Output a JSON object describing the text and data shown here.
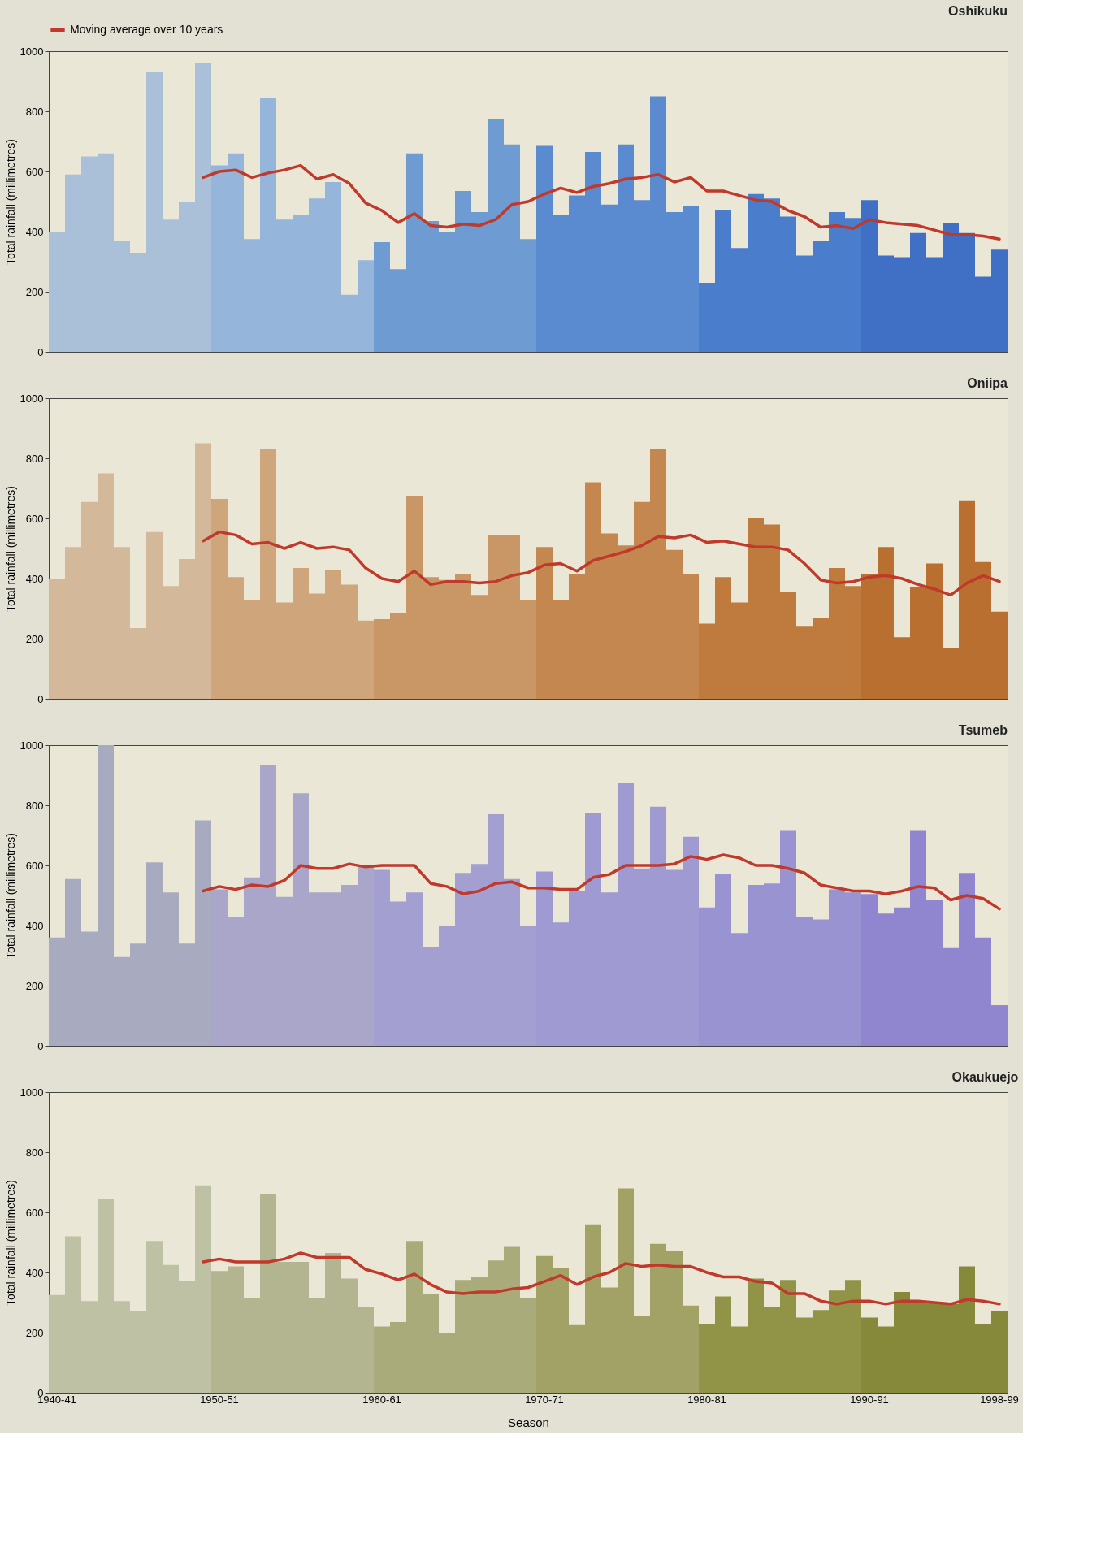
{
  "chart_data": [
    {
      "type": "bar",
      "title": "Oshikuku",
      "ylabel": "Total rainfall (millimetres)",
      "tick_labels": "y",
      "ylim": [
        0,
        1000
      ],
      "yticks": [
        0,
        200,
        400,
        600,
        800,
        1000
      ],
      "grid": false,
      "legend": "top",
      "categories": [
        "1940-41",
        null,
        null,
        null,
        null,
        null,
        null,
        null,
        null,
        null,
        "1950-51",
        null,
        null,
        null,
        null,
        null,
        null,
        null,
        null,
        null,
        "1960-61",
        null,
        null,
        null,
        null,
        null,
        null,
        null,
        null,
        null,
        "1970-71",
        null,
        null,
        null,
        null,
        null,
        null,
        null,
        null,
        null,
        "1980-81",
        null,
        null,
        null,
        null,
        null,
        null,
        null,
        null,
        null,
        "1990-91",
        null,
        null,
        null,
        null,
        null,
        null,
        null,
        "1998-99"
      ],
      "series": [
        {
          "values": [
            400,
            590,
            650,
            660,
            370,
            330,
            930,
            440,
            500,
            960,
            620,
            660,
            375,
            845,
            440,
            455,
            510,
            565,
            190,
            305,
            365,
            275,
            660,
            435,
            400,
            535,
            465,
            775,
            690,
            375,
            685,
            455,
            520,
            665,
            490,
            690,
            505,
            850,
            465,
            485,
            230,
            470,
            345,
            525,
            510,
            450,
            320,
            370,
            465,
            445,
            505,
            320,
            315,
            395,
            315,
            430,
            395,
            250,
            340
          ],
          "colors": [
            "#a9c0d8",
            "#a9c0d8",
            "#a9c0d8",
            "#a9c0d8",
            "#a9c0d8",
            "#a9c0d8",
            "#a9c0d8",
            "#a9c0d8",
            "#a9c0d8",
            "#a9c0d8",
            "#95b6da",
            "#95b6da",
            "#95b6da",
            "#95b6da",
            "#95b6da",
            "#95b6da",
            "#95b6da",
            "#95b6da",
            "#95b6da",
            "#95b6da",
            "#6e9bd2",
            "#6e9bd2",
            "#6e9bd2",
            "#6e9bd2",
            "#6e9bd2",
            "#6e9bd2",
            "#6e9bd2",
            "#6e9bd2",
            "#6e9bd2",
            "#6e9bd2",
            "#5a8ad0",
            "#5a8ad0",
            "#5a8ad0",
            "#5a8ad0",
            "#5a8ad0",
            "#5a8ad0",
            "#5a8ad0",
            "#5a8ad0",
            "#5a8ad0",
            "#5a8ad0",
            "#4a7dcc",
            "#4a7dcc",
            "#4a7dcc",
            "#4a7dcc",
            "#4a7dcc",
            "#4a7dcc",
            "#4a7dcc",
            "#4a7dcc",
            "#4a7dcc",
            "#4a7dcc",
            "#3f70c6",
            "#3f70c6",
            "#3f70c6",
            "#3f70c6",
            "#3f70c6",
            "#3f70c6",
            "#3f70c6",
            "#3f70c6",
            "#3f70c6"
          ]
        },
        {
          "type": "line",
          "name": "Moving average over 10 years",
          "color": "#c0392b",
          "values": [
            null,
            null,
            null,
            null,
            null,
            null,
            null,
            null,
            null,
            580,
            600,
            605,
            580,
            595,
            605,
            620,
            575,
            590,
            560,
            495,
            470,
            430,
            460,
            420,
            415,
            425,
            420,
            440,
            490,
            500,
            525,
            545,
            530,
            550,
            560,
            575,
            580,
            590,
            565,
            580,
            535,
            535,
            520,
            505,
            500,
            470,
            450,
            415,
            420,
            410,
            440,
            430,
            425,
            420,
            405,
            390,
            390,
            385,
            375
          ]
        }
      ]
    },
    {
      "type": "bar",
      "title": "Oniipa",
      "ylabel": "Total rainfall (millimetres)",
      "tick_labels": "y",
      "ylim": [
        0,
        1000
      ],
      "yticks": [
        0,
        200,
        400,
        600,
        800,
        1000
      ],
      "grid": false,
      "categories": [
        "1940-41",
        null,
        null,
        null,
        null,
        null,
        null,
        null,
        null,
        null,
        "1950-51",
        null,
        null,
        null,
        null,
        null,
        null,
        null,
        null,
        null,
        "1960-61",
        null,
        null,
        null,
        null,
        null,
        null,
        null,
        null,
        null,
        "1970-71",
        null,
        null,
        null,
        null,
        null,
        null,
        null,
        null,
        null,
        "1980-81",
        null,
        null,
        null,
        null,
        null,
        null,
        null,
        null,
        null,
        "1990-91",
        null,
        null,
        null,
        null,
        null,
        null,
        null,
        "1998-99"
      ],
      "series": [
        {
          "values": [
            400,
            505,
            655,
            750,
            505,
            235,
            555,
            375,
            465,
            850,
            665,
            405,
            330,
            830,
            320,
            435,
            350,
            430,
            380,
            260,
            265,
            285,
            675,
            405,
            395,
            415,
            345,
            545,
            545,
            330,
            505,
            330,
            415,
            720,
            550,
            510,
            655,
            830,
            495,
            415,
            250,
            405,
            320,
            600,
            580,
            355,
            240,
            270,
            435,
            375,
            415,
            505,
            205,
            370,
            450,
            170,
            660,
            455,
            290
          ],
          "colors": [
            "#d4b89a",
            "#d4b89a",
            "#d4b89a",
            "#d4b89a",
            "#d4b89a",
            "#d4b89a",
            "#d4b89a",
            "#d4b89a",
            "#d4b89a",
            "#d4b89a",
            "#cfa57c",
            "#cfa57c",
            "#cfa57c",
            "#cfa57c",
            "#cfa57c",
            "#cfa57c",
            "#cfa57c",
            "#cfa57c",
            "#cfa57c",
            "#cfa57c",
            "#c99666",
            "#c99666",
            "#c99666",
            "#c99666",
            "#c99666",
            "#c99666",
            "#c99666",
            "#c99666",
            "#c99666",
            "#c99666",
            "#c48750",
            "#c48750",
            "#c48750",
            "#c48750",
            "#c48750",
            "#c48750",
            "#c48750",
            "#c48750",
            "#c48750",
            "#c48750",
            "#bf7a3e",
            "#bf7a3e",
            "#bf7a3e",
            "#bf7a3e",
            "#bf7a3e",
            "#bf7a3e",
            "#bf7a3e",
            "#bf7a3e",
            "#bf7a3e",
            "#bf7a3e",
            "#b96f30",
            "#b96f30",
            "#b96f30",
            "#b96f30",
            "#b96f30",
            "#b96f30",
            "#b96f30",
            "#b96f30",
            "#b96f30"
          ]
        },
        {
          "type": "line",
          "color": "#c0392b",
          "values": [
            null,
            null,
            null,
            null,
            null,
            null,
            null,
            null,
            null,
            525,
            555,
            545,
            515,
            520,
            500,
            520,
            500,
            505,
            495,
            435,
            400,
            390,
            425,
            380,
            390,
            390,
            385,
            390,
            410,
            420,
            445,
            450,
            425,
            460,
            475,
            490,
            510,
            540,
            535,
            545,
            520,
            525,
            515,
            505,
            505,
            495,
            450,
            395,
            385,
            390,
            405,
            410,
            400,
            380,
            365,
            345,
            385,
            410,
            390
          ]
        }
      ]
    },
    {
      "type": "bar",
      "title": "Tsumeb",
      "ylabel": "Total rainfall (millimetres)",
      "tick_labels": "y",
      "ylim": [
        0,
        1000
      ],
      "yticks": [
        0,
        200,
        400,
        600,
        800,
        1000
      ],
      "grid": false,
      "categories": [
        "1940-41",
        null,
        null,
        null,
        null,
        null,
        null,
        null,
        null,
        null,
        "1950-51",
        null,
        null,
        null,
        null,
        null,
        null,
        null,
        null,
        null,
        "1960-61",
        null,
        null,
        null,
        null,
        null,
        null,
        null,
        null,
        null,
        "1970-71",
        null,
        null,
        null,
        null,
        null,
        null,
        null,
        null,
        null,
        "1980-81",
        null,
        null,
        null,
        null,
        null,
        null,
        null,
        null,
        null,
        "1990-91",
        null,
        null,
        null,
        null,
        null,
        null,
        null,
        "1998-99"
      ],
      "series": [
        {
          "values": [
            360,
            555,
            380,
            1000,
            295,
            340,
            610,
            510,
            340,
            750,
            520,
            430,
            560,
            935,
            495,
            840,
            510,
            510,
            535,
            600,
            585,
            480,
            510,
            330,
            400,
            575,
            605,
            770,
            555,
            400,
            580,
            410,
            515,
            775,
            510,
            875,
            590,
            795,
            585,
            695,
            460,
            570,
            375,
            535,
            540,
            715,
            430,
            420,
            520,
            510,
            505,
            440,
            460,
            715,
            485,
            325,
            575,
            360,
            135
          ],
          "colors": [
            "#a8abbf",
            "#a8abbf",
            "#a8abbf",
            "#a8abbf",
            "#a8abbf",
            "#a8abbf",
            "#a8abbf",
            "#a8abbf",
            "#a8abbf",
            "#a8abbf",
            "#a9a6c9",
            "#a9a6c9",
            "#a9a6c9",
            "#a9a6c9",
            "#a9a6c9",
            "#a9a6c9",
            "#a9a6c9",
            "#a9a6c9",
            "#a9a6c9",
            "#a9a6c9",
            "#a39fd0",
            "#a39fd0",
            "#a39fd0",
            "#a39fd0",
            "#a39fd0",
            "#a39fd0",
            "#a39fd0",
            "#a39fd0",
            "#a39fd0",
            "#a39fd0",
            "#a09ad2",
            "#a09ad2",
            "#a09ad2",
            "#a09ad2",
            "#a09ad2",
            "#a09ad2",
            "#a09ad2",
            "#a09ad2",
            "#a09ad2",
            "#a09ad2",
            "#9a93d2",
            "#9a93d2",
            "#9a93d2",
            "#9a93d2",
            "#9a93d2",
            "#9a93d2",
            "#9a93d2",
            "#9a93d2",
            "#9a93d2",
            "#9a93d2",
            "#8f86cf",
            "#8f86cf",
            "#8f86cf",
            "#8f86cf",
            "#8f86cf",
            "#8f86cf",
            "#8f86cf",
            "#8f86cf",
            "#8f86cf"
          ]
        },
        {
          "type": "line",
          "color": "#c0392b",
          "values": [
            null,
            null,
            null,
            null,
            null,
            null,
            null,
            null,
            null,
            515,
            530,
            520,
            535,
            530,
            550,
            600,
            590,
            590,
            605,
            595,
            600,
            600,
            600,
            540,
            530,
            505,
            515,
            540,
            545,
            525,
            525,
            520,
            520,
            560,
            570,
            600,
            600,
            600,
            605,
            630,
            620,
            635,
            625,
            600,
            600,
            590,
            575,
            535,
            525,
            515,
            515,
            505,
            515,
            530,
            525,
            485,
            500,
            490,
            455
          ]
        }
      ]
    },
    {
      "type": "bar",
      "title": "Okaukuejo",
      "ylabel": "Total rainfall (millimetres)",
      "xlabel": "Season",
      "ylim": [
        0,
        1000
      ],
      "yticks": [
        0,
        200,
        400,
        600,
        800,
        1000
      ],
      "grid": false,
      "categories": [
        "1940-41",
        null,
        null,
        null,
        null,
        null,
        null,
        null,
        null,
        null,
        "1950-51",
        null,
        null,
        null,
        null,
        null,
        null,
        null,
        null,
        null,
        "1960-61",
        null,
        null,
        null,
        null,
        null,
        null,
        null,
        null,
        null,
        "1970-71",
        null,
        null,
        null,
        null,
        null,
        null,
        null,
        null,
        null,
        "1980-81",
        null,
        null,
        null,
        null,
        null,
        null,
        null,
        null,
        null,
        "1990-91",
        null,
        null,
        null,
        null,
        null,
        null,
        null,
        "1998-99"
      ],
      "series": [
        {
          "values": [
            325,
            520,
            305,
            645,
            305,
            270,
            505,
            425,
            370,
            690,
            405,
            420,
            315,
            660,
            435,
            435,
            315,
            465,
            380,
            285,
            220,
            235,
            505,
            330,
            200,
            375,
            385,
            440,
            485,
            315,
            455,
            415,
            225,
            560,
            350,
            680,
            255,
            495,
            470,
            290,
            230,
            320,
            220,
            380,
            285,
            375,
            250,
            275,
            340,
            375,
            250,
            220,
            335,
            300,
            300,
            295,
            420,
            230,
            270
          ],
          "colors": [
            "#bfc1a5",
            "#bfc1a5",
            "#bfc1a5",
            "#bfc1a5",
            "#bfc1a5",
            "#bfc1a5",
            "#bfc1a5",
            "#bfc1a5",
            "#bfc1a5",
            "#bfc1a5",
            "#b2b58f",
            "#b2b58f",
            "#b2b58f",
            "#b2b58f",
            "#b2b58f",
            "#b2b58f",
            "#b2b58f",
            "#b2b58f",
            "#b2b58f",
            "#b2b58f",
            "#a9ab7a",
            "#a9ab7a",
            "#a9ab7a",
            "#a9ab7a",
            "#a9ab7a",
            "#a9ab7a",
            "#a9ab7a",
            "#a9ab7a",
            "#a9ab7a",
            "#a9ab7a",
            "#a3a266",
            "#a3a266",
            "#a3a266",
            "#a3a266",
            "#a3a266",
            "#a3a266",
            "#a3a266",
            "#a3a266",
            "#a3a266",
            "#a3a266",
            "#919347",
            "#919347",
            "#919347",
            "#919347",
            "#919347",
            "#919347",
            "#919347",
            "#919347",
            "#919347",
            "#919347",
            "#87893a",
            "#87893a",
            "#87893a",
            "#87893a",
            "#87893a",
            "#87893a",
            "#87893a",
            "#87893a",
            "#87893a"
          ]
        },
        {
          "type": "line",
          "color": "#c0392b",
          "values": [
            null,
            null,
            null,
            null,
            null,
            null,
            null,
            null,
            null,
            435,
            445,
            435,
            435,
            435,
            445,
            465,
            450,
            450,
            450,
            410,
            395,
            375,
            395,
            360,
            335,
            330,
            335,
            335,
            345,
            350,
            370,
            390,
            360,
            385,
            400,
            430,
            420,
            425,
            420,
            420,
            400,
            385,
            385,
            370,
            365,
            330,
            330,
            305,
            295,
            305,
            305,
            295,
            305,
            305,
            300,
            295,
            310,
            305,
            295
          ]
        }
      ]
    }
  ]
}
